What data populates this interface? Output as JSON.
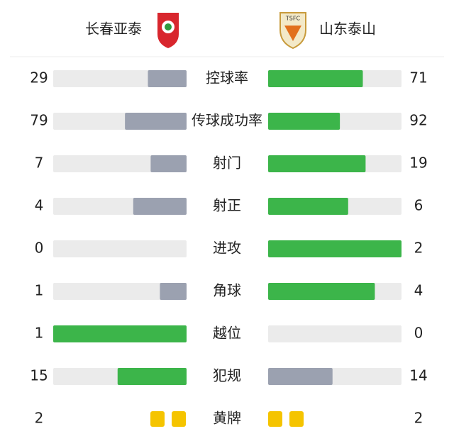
{
  "header": {
    "home_team": "长春亚泰",
    "away_team": "山东泰山"
  },
  "stats": [
    {
      "label": "控球率",
      "home": 29,
      "away": 71
    },
    {
      "label": "传球成功率",
      "home": 79,
      "away": 92
    },
    {
      "label": "射门",
      "home": 7,
      "away": 19
    },
    {
      "label": "射正",
      "home": 4,
      "away": 6
    },
    {
      "label": "进攻",
      "home": 0,
      "away": 2
    },
    {
      "label": "角球",
      "home": 1,
      "away": 4
    },
    {
      "label": "越位",
      "home": 1,
      "away": 0
    },
    {
      "label": "犯规",
      "home": 15,
      "away": 14
    }
  ],
  "yellow_cards": {
    "label": "黄牌",
    "home": 2,
    "away": 2
  }
}
